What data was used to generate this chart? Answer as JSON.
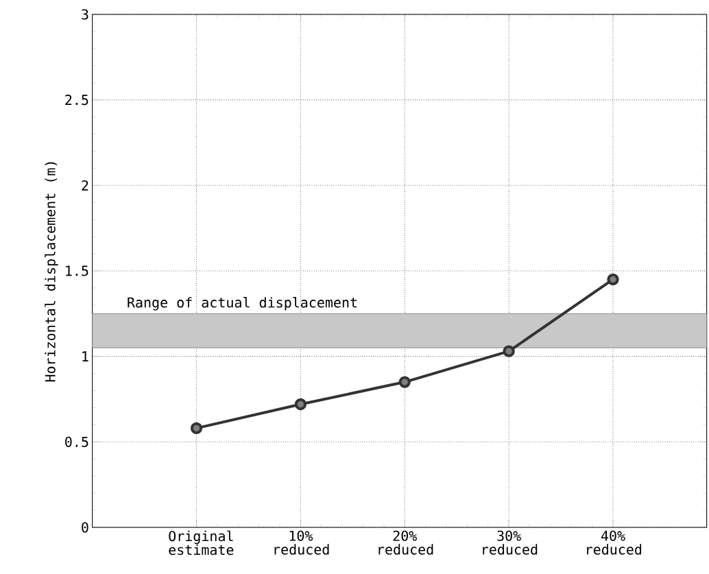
{
  "chart_data": {
    "type": "line",
    "ylabel": "Horizontal displacement (m)",
    "categories": [
      "Original estimate",
      "10% reduced",
      "20% reduced",
      "30% reduced",
      "40% reduced"
    ],
    "values": [
      0.58,
      0.72,
      0.85,
      1.03,
      1.45
    ],
    "color": "#333333",
    "marker": "circle",
    "line_style": "solid",
    "ylim": [
      0,
      3
    ],
    "yticks": [
      0,
      0.5,
      1,
      1.5,
      2,
      2.5,
      3
    ],
    "grid": true,
    "bands": [
      {
        "axis": "y",
        "from": 1.05,
        "to": 1.25,
        "label": "Range of actual displacement",
        "color": "#c8c8c8"
      }
    ]
  }
}
